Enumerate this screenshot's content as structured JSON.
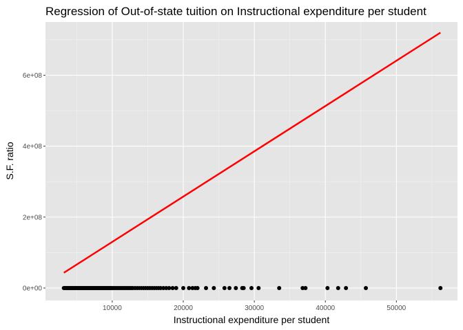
{
  "chart_data": {
    "type": "scatter",
    "title": "Regression of Out-of-state tuition on Instructional expenditure per student",
    "xlabel": "Instructional expenditure per student",
    "ylabel": "S.F. ratio",
    "xlim": [
      600,
      58600
    ],
    "ylim": [
      -35000000,
      750000000
    ],
    "x_ticks": [
      10000,
      20000,
      30000,
      40000,
      50000
    ],
    "x_tick_labels": [
      "10000",
      "20000",
      "30000",
      "40000",
      "50000"
    ],
    "y_ticks": [
      0,
      200000000,
      400000000,
      600000000
    ],
    "y_tick_labels": [
      "0e+00",
      "2e+08",
      "4e+08",
      "6e+08"
    ],
    "grid": true,
    "background": "#e5e5e5",
    "point_color": "#000000",
    "line_color": "#ff0000",
    "points_x": [
      3186,
      3300,
      3420,
      3550,
      3680,
      3800,
      3920,
      4050,
      4180,
      4300,
      4420,
      4550,
      4680,
      4800,
      4920,
      5050,
      5180,
      5300,
      5420,
      5550,
      5680,
      5800,
      5920,
      6050,
      6180,
      6300,
      6420,
      6550,
      6680,
      6800,
      6920,
      7050,
      7180,
      7300,
      7420,
      7550,
      7680,
      7800,
      7920,
      8050,
      8180,
      8300,
      8420,
      8550,
      8680,
      8800,
      8920,
      9050,
      9180,
      9300,
      9420,
      9550,
      9680,
      9800,
      9920,
      10100,
      10300,
      10500,
      10700,
      10900,
      11100,
      11300,
      11500,
      11700,
      11900,
      12100,
      12300,
      12500,
      12700,
      12900,
      13200,
      13500,
      13800,
      14100,
      14400,
      14700,
      15000,
      15300,
      15600,
      15900,
      16200,
      16500,
      16800,
      17200,
      17600,
      18000,
      18500,
      19000,
      20000,
      20800,
      21300,
      21700,
      22000,
      23200,
      24300,
      25800,
      26500,
      27400,
      28300,
      28500,
      29600,
      30600,
      33500,
      36800,
      37200,
      40300,
      41800,
      42900,
      45700,
      56200
    ],
    "points_y": [
      0,
      0,
      0,
      0,
      0,
      0,
      0,
      0,
      0,
      0,
      0,
      0,
      0,
      0,
      0,
      0,
      0,
      0,
      0,
      0,
      0,
      0,
      0,
      0,
      0,
      0,
      0,
      0,
      0,
      0,
      0,
      0,
      0,
      0,
      0,
      0,
      0,
      0,
      0,
      0,
      0,
      0,
      0,
      0,
      0,
      0,
      0,
      0,
      0,
      0,
      0,
      0,
      0,
      0,
      0,
      0,
      0,
      0,
      0,
      0,
      0,
      0,
      0,
      0,
      0,
      0,
      0,
      0,
      0,
      0,
      0,
      0,
      0,
      0,
      0,
      0,
      0,
      0,
      0,
      0,
      0,
      0,
      0,
      0,
      0,
      0,
      0,
      0,
      0,
      0,
      0,
      0,
      0,
      0,
      0,
      0,
      0,
      0,
      0,
      0,
      0,
      0,
      0,
      0,
      0,
      0,
      0,
      0,
      0,
      0
    ],
    "regression_line": {
      "x": [
        3186,
        56200
      ],
      "y": [
        43000000,
        720000000
      ]
    }
  }
}
